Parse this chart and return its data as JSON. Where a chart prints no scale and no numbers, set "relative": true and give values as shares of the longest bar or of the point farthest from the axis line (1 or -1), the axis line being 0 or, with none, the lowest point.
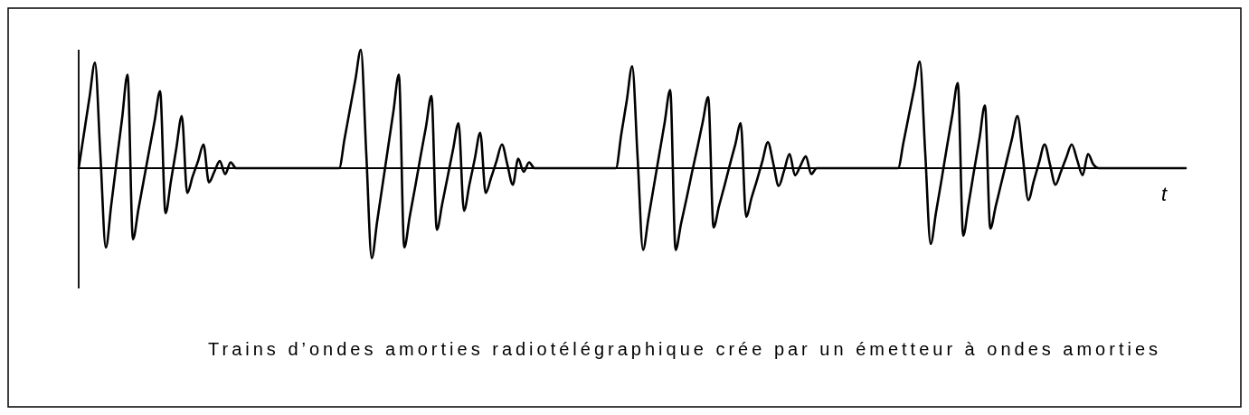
{
  "chart_data": {
    "type": "line",
    "relative": true,
    "xlabel": "t",
    "annotations": [
      "Trains d’ondes amorties radiotélégraphique crée par un émetteur à ondes amorties"
    ],
    "categories": [
      null,
      null,
      null,
      null,
      null,
      null,
      null,
      null,
      null,
      null,
      null,
      null,
      null,
      null,
      null,
      null,
      null,
      null,
      null,
      null,
      null,
      null,
      null,
      null,
      null,
      null,
      null,
      null,
      null,
      null,
      null,
      null,
      null,
      null,
      null,
      null,
      null,
      null,
      null,
      null,
      null,
      null,
      null,
      null,
      null,
      null,
      null,
      null,
      null,
      null,
      null,
      null,
      null,
      null,
      null,
      null,
      null,
      null,
      null,
      null,
      null,
      null,
      null,
      null,
      null,
      null,
      null,
      null,
      null,
      null,
      null,
      null,
      null,
      null,
      null,
      null,
      null,
      null,
      null,
      null,
      null,
      null,
      null,
      null,
      null,
      null,
      null,
      null,
      null,
      null,
      null,
      null,
      null,
      null,
      null,
      null,
      null,
      null,
      null,
      null,
      null,
      null,
      null,
      null,
      null,
      null,
      null,
      null,
      null,
      null,
      null,
      null,
      null,
      null,
      null,
      null,
      null,
      null,
      null,
      null,
      null,
      null,
      null,
      null,
      null,
      null,
      null,
      null,
      null,
      null,
      null,
      null,
      null,
      null,
      null,
      null,
      null,
      null,
      null,
      null,
      null,
      null,
      null,
      null,
      null,
      null,
      null,
      null,
      null,
      null,
      null,
      null,
      null,
      null,
      null,
      null,
      null,
      null,
      null,
      null,
      null,
      null,
      null,
      null,
      null,
      null,
      null,
      null,
      null,
      null,
      null,
      null,
      null,
      null,
      null,
      null,
      null,
      null,
      null,
      null,
      null,
      null,
      null,
      null,
      null,
      null,
      null,
      null,
      null,
      null,
      null,
      null,
      null,
      null,
      null,
      null,
      null,
      null,
      null,
      null,
      null,
      null,
      null,
      null,
      null
    ],
    "series": [
      {
        "color": "#000000",
        "values": [
          0,
          0.3,
          0.6,
          0.89,
          0.11,
          -0.67,
          -0.31,
          0.06,
          0.42,
          0.79,
          -0.6,
          -0.35,
          -0.1,
          0.15,
          0.4,
          0.65,
          -0.38,
          -0.11,
          0.17,
          0.44,
          -0.21,
          -0.07,
          0.06,
          0.2,
          -0.12,
          -0.03,
          0.06,
          -0.05,
          0.05,
          0,
          0,
          0,
          0,
          0,
          0,
          0,
          0,
          0,
          0,
          0,
          0,
          0,
          0,
          0,
          0,
          0,
          0,
          0,
          0,
          0.25,
          0.5,
          0.75,
          1,
          0.12,
          -0.76,
          -0.45,
          -0.14,
          0.17,
          0.48,
          0.79,
          -0.67,
          -0.41,
          -0.16,
          0.1,
          0.35,
          0.61,
          -0.52,
          -0.3,
          -0.07,
          0.16,
          0.38,
          -0.36,
          -0.14,
          0.08,
          0.3,
          -0.21,
          -0.08,
          0.06,
          0.2,
          0.03,
          -0.14,
          0.08,
          -0.03,
          0.05,
          0,
          0,
          0,
          0,
          0,
          0,
          0,
          0,
          0,
          0,
          0,
          0,
          0,
          0,
          0,
          0,
          0.29,
          0.57,
          0.86,
          0.09,
          -0.69,
          -0.42,
          -0.15,
          0.12,
          0.39,
          0.66,
          -0.69,
          -0.47,
          -0.26,
          -0.04,
          0.17,
          0.39,
          0.6,
          -0.5,
          -0.32,
          -0.15,
          0.03,
          0.2,
          0.38,
          -0.41,
          -0.25,
          -0.1,
          0.06,
          0.22,
          0.04,
          -0.15,
          -0.02,
          0.12,
          -0.06,
          0.02,
          0.1,
          -0.05,
          0,
          0,
          0,
          0,
          0,
          0,
          0,
          0,
          0,
          0,
          0,
          0,
          0,
          0,
          0,
          0,
          0.22,
          0.45,
          0.68,
          0.9,
          0.13,
          -0.64,
          -0.37,
          -0.1,
          0.18,
          0.45,
          0.72,
          -0.57,
          -0.3,
          -0.02,
          0.25,
          0.53,
          -0.51,
          -0.32,
          -0.13,
          0.06,
          0.25,
          0.44,
          0.09,
          -0.27,
          -0.11,
          0.05,
          0.2,
          0.03,
          -0.14,
          -0.03,
          0.09,
          0.2,
          0.07,
          -0.06,
          0.12,
          0.03,
          0,
          0,
          0,
          0,
          0,
          0,
          0,
          0,
          0,
          0,
          0,
          0,
          0,
          0,
          0,
          0,
          0
        ]
      }
    ]
  }
}
